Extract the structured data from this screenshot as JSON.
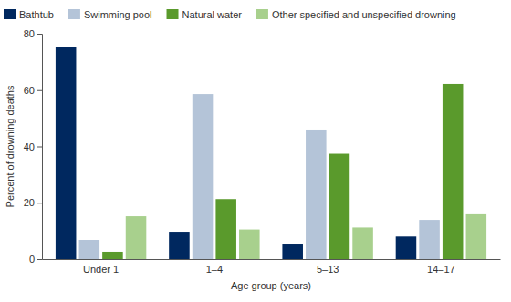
{
  "chart_data": {
    "type": "bar",
    "x_label": "Age group (years)",
    "y_label": "Percent of drowning deaths",
    "categories": [
      "Under 1",
      "1–4",
      "5–13",
      "14–17"
    ],
    "series": [
      {
        "name": "Bathtub",
        "color": "#00285f",
        "values": [
          75.4,
          9.7,
          5.5,
          8.0
        ]
      },
      {
        "name": "Swimming pool",
        "color": "#b4c4d8",
        "values": [
          6.8,
          58.6,
          46.0,
          13.9
        ]
      },
      {
        "name": "Natural water",
        "color": "#5a9a2c",
        "values": [
          2.6,
          21.3,
          37.4,
          62.2
        ]
      },
      {
        "name": "Other specified and unspecified drowning",
        "color": "#a8d08d",
        "values": [
          15.2,
          10.5,
          11.2,
          15.9
        ]
      }
    ],
    "ylim": [
      0,
      80
    ],
    "yticks": [
      0,
      20,
      40,
      60,
      80
    ],
    "grid": false,
    "legend": "top-left"
  }
}
